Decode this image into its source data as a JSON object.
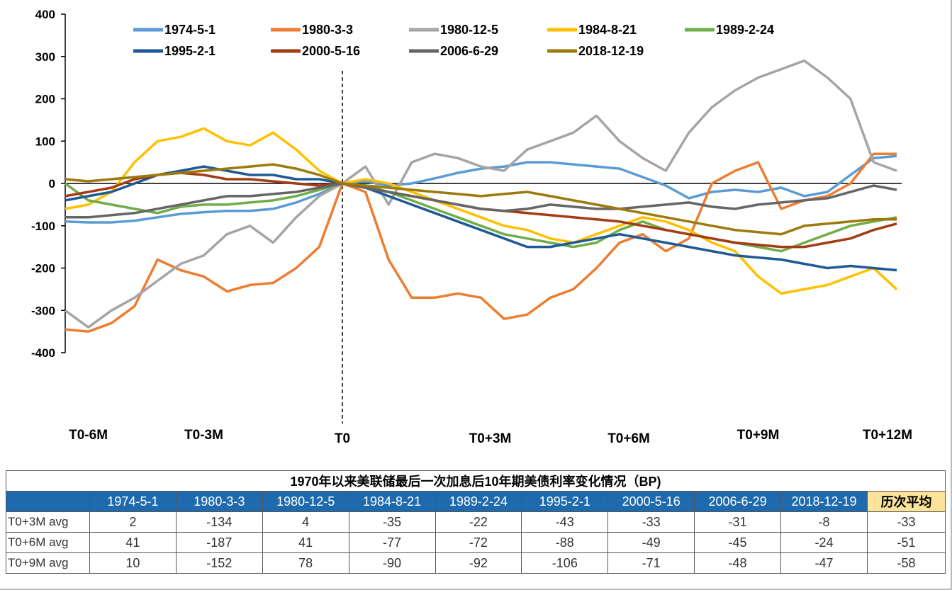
{
  "chart_data": {
    "type": "line",
    "ylim": [
      -400,
      400
    ],
    "yticks": [
      "400",
      "300",
      "200",
      "100",
      "0",
      "-100",
      "-200",
      "-300",
      "-400"
    ],
    "xticks": [
      "T0-6M",
      "T0-3M",
      "T0",
      "T0+3M",
      "T0+6M",
      "T0+9M",
      "T0+12M"
    ],
    "xlim": [
      -6,
      12
    ],
    "x": [
      -6,
      -5.5,
      -5,
      -4.5,
      -4,
      -3.5,
      -3,
      -2.5,
      -2,
      -1.5,
      -1,
      -0.5,
      0,
      0.5,
      1,
      1.5,
      2,
      2.5,
      3,
      3.5,
      4,
      4.5,
      5,
      5.5,
      6,
      6.5,
      7,
      7.5,
      8,
      8.5,
      9,
      9.5,
      10,
      10.5,
      11,
      11.5,
      12
    ],
    "series": [
      {
        "name": "1974-5-1",
        "color": "#5b9bd5",
        "values": [
          -90,
          -92,
          -92,
          -88,
          -80,
          -72,
          -68,
          -65,
          -65,
          -60,
          -45,
          -25,
          0,
          5,
          -5,
          0,
          12,
          25,
          35,
          40,
          50,
          50,
          45,
          40,
          35,
          15,
          -5,
          -35,
          -20,
          -15,
          -20,
          -10,
          -30,
          -20,
          20,
          60,
          65
        ]
      },
      {
        "name": "1980-3-3",
        "color": "#ed7d31",
        "values": [
          -345,
          -350,
          -330,
          -290,
          -180,
          -205,
          -220,
          -255,
          -240,
          -235,
          -200,
          -150,
          0,
          -20,
          -180,
          -270,
          -270,
          -260,
          -270,
          -320,
          -310,
          -270,
          -250,
          -200,
          -140,
          -120,
          -160,
          -130,
          0,
          30,
          50,
          -60,
          -40,
          -30,
          0,
          70,
          70
        ]
      },
      {
        "name": "1980-12-5",
        "color": "#a5a5a5",
        "values": [
          -300,
          -340,
          -300,
          -270,
          -230,
          -190,
          -170,
          -120,
          -100,
          -140,
          -80,
          -30,
          0,
          40,
          -50,
          50,
          70,
          60,
          40,
          30,
          80,
          100,
          120,
          160,
          100,
          60,
          30,
          120,
          180,
          220,
          250,
          270,
          290,
          250,
          200,
          50,
          30
        ]
      },
      {
        "name": "1984-8-21",
        "color": "#ffc000",
        "values": [
          -60,
          -50,
          -20,
          50,
          100,
          110,
          130,
          100,
          90,
          120,
          80,
          30,
          0,
          10,
          0,
          -20,
          -40,
          -60,
          -80,
          -100,
          -110,
          -130,
          -140,
          -120,
          -100,
          -80,
          -90,
          -110,
          -140,
          -160,
          -220,
          -260,
          -250,
          -240,
          -220,
          -200,
          -250
        ]
      },
      {
        "name": "1989-2-24",
        "color": "#70ad47",
        "values": [
          0,
          -40,
          -50,
          -60,
          -70,
          -55,
          -50,
          -50,
          -45,
          -40,
          -30,
          -15,
          0,
          -5,
          -20,
          -40,
          -60,
          -80,
          -100,
          -120,
          -130,
          -140,
          -150,
          -140,
          -110,
          -90,
          -110,
          -120,
          -130,
          -140,
          -150,
          -160,
          -140,
          -120,
          -100,
          -90,
          -80
        ]
      },
      {
        "name": "1995-2-1",
        "color": "#1f5a96",
        "values": [
          -40,
          -30,
          -20,
          0,
          20,
          30,
          40,
          30,
          20,
          20,
          10,
          10,
          0,
          -10,
          -30,
          -50,
          -70,
          -90,
          -110,
          -130,
          -150,
          -150,
          -140,
          -130,
          -120,
          -130,
          -140,
          -150,
          -160,
          -170,
          -175,
          -180,
          -190,
          -200,
          -195,
          -200,
          -205
        ]
      },
      {
        "name": "2000-5-16",
        "color": "#a33c12",
        "values": [
          -30,
          -20,
          -10,
          10,
          20,
          25,
          20,
          10,
          10,
          5,
          0,
          -5,
          0,
          -10,
          -20,
          -30,
          -40,
          -50,
          -60,
          -65,
          -70,
          -75,
          -80,
          -85,
          -90,
          -100,
          -110,
          -120,
          -130,
          -140,
          -145,
          -150,
          -150,
          -140,
          -130,
          -110,
          -95
        ]
      },
      {
        "name": "2006-6-29",
        "color": "#666666",
        "values": [
          -80,
          -80,
          -75,
          -70,
          -60,
          -50,
          -40,
          -30,
          -30,
          -25,
          -20,
          -10,
          0,
          -10,
          -20,
          -30,
          -40,
          -50,
          -60,
          -65,
          -60,
          -50,
          -55,
          -60,
          -60,
          -55,
          -50,
          -45,
          -55,
          -60,
          -50,
          -45,
          -40,
          -35,
          -20,
          -5,
          -15
        ]
      },
      {
        "name": "2018-12-19",
        "color": "#9c7a0b",
        "values": [
          10,
          5,
          10,
          15,
          20,
          25,
          30,
          35,
          40,
          45,
          35,
          20,
          0,
          -5,
          -10,
          -15,
          -20,
          -25,
          -30,
          -25,
          -20,
          -30,
          -40,
          -50,
          -60,
          -70,
          -80,
          -90,
          -100,
          -110,
          -115,
          -120,
          -100,
          -95,
          -90,
          -85,
          -85
        ]
      }
    ]
  },
  "table": {
    "title": "1970年以来美联储最后一次加息后10年期美债利率变化情况（BP)",
    "headers": [
      "1974-5-1",
      "1980-3-3",
      "1980-12-5",
      "1984-8-21",
      "1989-2-24",
      "1995-2-1",
      "2000-5-16",
      "2006-6-29",
      "2018-12-19"
    ],
    "avg_header": "历次平均",
    "rows": [
      {
        "label": "T0+3M avg",
        "values": [
          "2",
          "-134",
          "4",
          "-35",
          "-22",
          "-43",
          "-33",
          "-31",
          "-8"
        ],
        "avg": "-33"
      },
      {
        "label": "T0+6M avg",
        "values": [
          "41",
          "-187",
          "41",
          "-77",
          "-72",
          "-88",
          "-49",
          "-45",
          "-24"
        ],
        "avg": "-51"
      },
      {
        "label": "T0+9M avg",
        "values": [
          "10",
          "-152",
          "78",
          "-90",
          "-92",
          "-106",
          "-71",
          "-48",
          "-47"
        ],
        "avg": "-58"
      }
    ]
  }
}
